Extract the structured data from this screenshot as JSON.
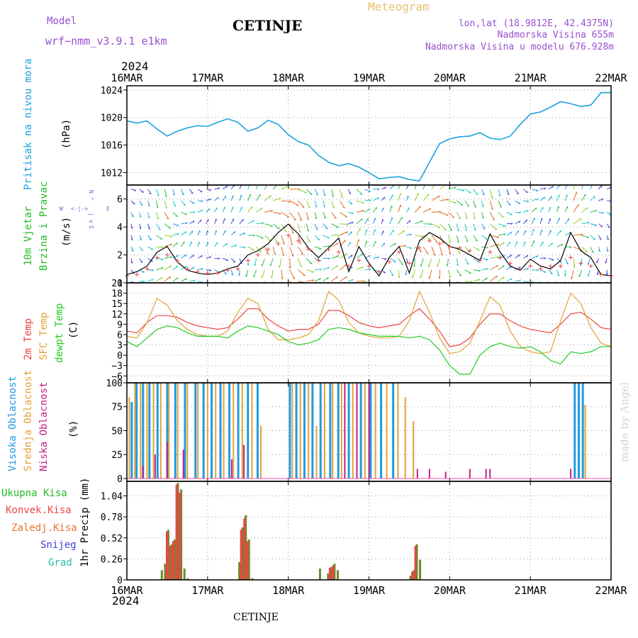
{
  "header": {
    "model_label": "Model",
    "model_name": "wrf−nmm_v3.9.1  e1km",
    "station": "CETINJE",
    "meteogram_label": "Meteogram",
    "lonlat": "lon,lat (18.9812E, 42.4375N)",
    "elevation": "Nadmorska Visina 655m",
    "model_elevation": "Nadmorska Visina u modelu 676.928m",
    "watermark": "made by Angel",
    "footer_station": "CETINJE",
    "year": "2024"
  },
  "colors": {
    "pressure": "#1da1e0",
    "wind": "#22bb22",
    "temp2m": "#ee4444",
    "sfc": "#e2a238",
    "dewpt": "#22cc22",
    "high_cloud": "#1e9be0",
    "mid_cloud": "#e2a238",
    "low_cloud": "#c0208a",
    "model": "#9a4fd0",
    "meteogram": "#e8c070",
    "snow": "#4040dd",
    "grad": "#22bbaa"
  },
  "chart_data": [
    {
      "type": "line",
      "id": "pressure",
      "ylabel": "Pritisak na nivou mora",
      "unit": "(hPa)",
      "x_ticks": [
        "16MAR",
        "17MAR",
        "18MAR",
        "19MAR",
        "20MAR",
        "21MAR",
        "22MAR"
      ],
      "yticks": [
        1012,
        1016,
        1020,
        1024
      ],
      "ylim": [
        1010.2,
        1024.6
      ],
      "x_days": [
        0,
        0.125,
        0.25,
        0.375,
        0.5,
        0.625,
        0.75,
        0.875,
        1.0,
        1.125,
        1.25,
        1.375,
        1.5,
        1.625,
        1.75,
        1.875,
        2.0,
        2.125,
        2.25,
        2.375,
        2.5,
        2.625,
        2.75,
        2.875,
        3.0,
        3.125,
        3.25,
        3.375,
        3.5,
        3.625,
        3.75,
        3.875,
        4.0,
        4.125,
        4.25,
        4.375,
        4.5,
        4.625,
        4.75,
        4.875,
        5.0,
        5.125,
        5.25,
        5.375,
        5.5,
        5.625,
        5.75,
        5.875,
        6.0
      ],
      "series": [
        {
          "values": [
            1019.5,
            1019.2,
            1019.5,
            1018.3,
            1017.3,
            1018.0,
            1018.5,
            1018.8,
            1018.7,
            1019.3,
            1019.8,
            1019.3,
            1018.0,
            1018.5,
            1019.6,
            1019.0,
            1017.5,
            1016.5,
            1016.0,
            1014.5,
            1013.5,
            1013.0,
            1013.3,
            1012.8,
            1012.0,
            1011.1,
            1011.3,
            1011.4,
            1011.0,
            1010.8,
            1013.5,
            1016.2,
            1016.9,
            1017.2,
            1017.3,
            1017.8,
            1017.0,
            1016.8,
            1017.3,
            1019.0,
            1020.5,
            1020.8,
            1021.5,
            1022.3,
            1022.0,
            1021.6,
            1021.8,
            1023.6,
            1023.6
          ]
        }
      ]
    },
    {
      "type": "line",
      "id": "wind",
      "ylabel": [
        "10m Vjetar",
        "Brzina i Pravac"
      ],
      "unit": "(m/s)",
      "compass": [
        "W",
        "<-|->",
        "E",
        "N",
        "^",
        "|",
        "v",
        "S"
      ],
      "yticks": [
        0,
        2,
        4,
        6
      ],
      "ylim": [
        0,
        7.0
      ],
      "x_days": [
        0,
        0.125,
        0.25,
        0.375,
        0.5,
        0.625,
        0.75,
        0.875,
        1.0,
        1.125,
        1.25,
        1.375,
        1.5,
        1.625,
        1.75,
        1.875,
        2.0,
        2.125,
        2.25,
        2.375,
        2.5,
        2.625,
        2.75,
        2.875,
        3.0,
        3.125,
        3.25,
        3.375,
        3.5,
        3.625,
        3.75,
        3.875,
        4.0,
        4.125,
        4.25,
        4.375,
        4.5,
        4.625,
        4.75,
        4.875,
        5.0,
        5.125,
        5.25,
        5.375,
        5.5,
        5.625,
        5.75,
        5.875,
        6.0
      ],
      "series": [
        {
          "name": "speed",
          "values": [
            0.6,
            0.8,
            1.2,
            2.2,
            2.6,
            1.5,
            0.9,
            0.7,
            0.6,
            0.7,
            1.0,
            1.2,
            2.0,
            2.3,
            2.8,
            3.6,
            4.2,
            3.5,
            2.5,
            1.8,
            2.5,
            3.2,
            0.8,
            2.6,
            1.4,
            0.5,
            1.8,
            2.6,
            0.7,
            3.0,
            3.6,
            3.2,
            2.6,
            2.4,
            2.0,
            1.6,
            3.5,
            2.2,
            1.2,
            0.9,
            1.7,
            1.2,
            1.0,
            1.6,
            3.6,
            2.3,
            1.8,
            0.6,
            0.5
          ]
        },
        {
          "name": "gust",
          "values": [
            0.5,
            0.6,
            1.0,
            1.8,
            2.0,
            1.6,
            1.0,
            0.8,
            0.7,
            0.7,
            0.9,
            1.0,
            1.6,
            2.0,
            2.4,
            2.8,
            3.4,
            3.0,
            2.4,
            1.6,
            2.4,
            2.2,
            1.2,
            1.6,
            1.2,
            0.8,
            1.5,
            2.2,
            1.4,
            2.5,
            3.0,
            2.8,
            2.6,
            2.5,
            2.3,
            1.6,
            2.2,
            1.8,
            1.4,
            1.0,
            1.2,
            1.0,
            1.2,
            1.2,
            1.8,
            1.4,
            1.2,
            0.6,
            0.5
          ]
        }
      ]
    },
    {
      "type": "line",
      "id": "temperature",
      "ylabel": [
        "2m Temp",
        "SFC Temp",
        "dewpt Temp"
      ],
      "unit": "(C)",
      "yticks": [
        -6,
        -3,
        0,
        3,
        6,
        9,
        12,
        15,
        18,
        21
      ],
      "ylim": [
        -8.0,
        21.0
      ],
      "x_days": [
        0,
        0.125,
        0.25,
        0.375,
        0.5,
        0.625,
        0.75,
        0.875,
        1.0,
        1.125,
        1.25,
        1.375,
        1.5,
        1.625,
        1.75,
        1.875,
        2.0,
        2.125,
        2.25,
        2.375,
        2.5,
        2.625,
        2.75,
        2.875,
        3.0,
        3.125,
        3.25,
        3.375,
        3.5,
        3.625,
        3.75,
        3.875,
        4.0,
        4.125,
        4.25,
        4.375,
        4.5,
        4.625,
        4.75,
        4.875,
        5.0,
        5.125,
        5.25,
        5.375,
        5.5,
        5.625,
        5.75,
        5.875,
        6.0
      ],
      "series": [
        {
          "name": "2m Temp",
          "values": [
            7.0,
            6.5,
            9.5,
            11.5,
            11.5,
            11.0,
            9.5,
            8.5,
            8.0,
            7.5,
            8.0,
            10.5,
            13.5,
            13.5,
            10.5,
            8.5,
            7.0,
            7.5,
            7.5,
            9.0,
            13.0,
            13.0,
            11.5,
            9.5,
            8.5,
            8.0,
            8.5,
            9.0,
            11.5,
            13.5,
            10.5,
            7.0,
            2.5,
            3.0,
            5.0,
            9.0,
            12.0,
            12.0,
            10.0,
            8.5,
            7.5,
            7.0,
            6.5,
            9.0,
            12.0,
            12.5,
            10.5,
            8.0,
            7.5
          ]
        },
        {
          "name": "SFC Temp",
          "values": [
            5.5,
            5.0,
            9.5,
            16.5,
            14.5,
            10.0,
            7.5,
            6.0,
            5.5,
            5.5,
            7.0,
            12.5,
            16.5,
            15.0,
            7.5,
            4.5,
            4.5,
            5.0,
            6.0,
            10.0,
            18.5,
            16.0,
            9.5,
            6.5,
            5.5,
            5.0,
            5.0,
            5.5,
            10.0,
            18.5,
            12.5,
            5.0,
            0.5,
            1.0,
            3.5,
            10.0,
            17.0,
            14.5,
            7.0,
            2.5,
            1.0,
            0.5,
            1.0,
            10.0,
            18.0,
            15.0,
            8.0,
            3.5,
            2.5
          ]
        },
        {
          "name": "dewpt Temp",
          "values": [
            4.0,
            2.5,
            5.0,
            7.5,
            8.5,
            8.0,
            6.5,
            5.5,
            5.5,
            5.5,
            5.0,
            7.0,
            8.5,
            8.0,
            7.0,
            6.0,
            4.0,
            3.0,
            3.5,
            4.5,
            7.5,
            8.0,
            7.5,
            6.5,
            6.0,
            5.5,
            5.5,
            5.5,
            5.0,
            5.5,
            4.5,
            1.5,
            -3.0,
            -5.5,
            -5.5,
            0.0,
            2.5,
            3.5,
            2.5,
            2.0,
            2.5,
            1.0,
            -1.5,
            -2.5,
            1.0,
            0.5,
            1.0,
            2.5,
            2.5
          ]
        }
      ]
    },
    {
      "type": "bar",
      "id": "clouds",
      "ylabel": [
        "Visoka Oblacnost",
        "Srednja Oblacnost",
        "Niska Oblacnost"
      ],
      "unit": "(%)",
      "yticks": [
        0,
        25,
        50,
        75,
        100
      ],
      "ylim": [
        -3,
        100
      ],
      "series": [
        {
          "name": "Visoka Oblacnost",
          "x_days": [
            0.06,
            0.12,
            0.2,
            0.28,
            0.38,
            0.5,
            0.6,
            0.72,
            0.85,
            0.95,
            1.05,
            1.16,
            1.27,
            1.38,
            1.5,
            1.62,
            2.02,
            2.1,
            2.2,
            2.3,
            2.4,
            2.52,
            2.62,
            2.75,
            2.9,
            3.02,
            3.15,
            3.3,
            5.55,
            5.6,
            5.65
          ],
          "values": [
            80,
            100,
            100,
            100,
            100,
            100,
            100,
            100,
            100,
            100,
            100,
            100,
            100,
            100,
            100,
            100,
            100,
            100,
            100,
            100,
            100,
            100,
            100,
            100,
            100,
            100,
            100,
            100,
            100,
            100,
            100
          ]
        },
        {
          "name": "Srednja Oblacnost",
          "x_days": [
            0.03,
            0.1,
            0.17,
            0.25,
            0.33,
            0.42,
            0.52,
            0.63,
            0.75,
            0.88,
            1.0,
            1.1,
            1.2,
            1.32,
            1.43,
            1.55,
            1.66,
            2.05,
            2.15,
            2.25,
            2.35,
            2.45,
            2.55,
            2.66,
            2.8,
            2.95,
            3.08,
            3.22,
            3.36,
            3.45,
            3.55,
            5.68
          ],
          "values": [
            85,
            100,
            100,
            100,
            100,
            100,
            100,
            100,
            100,
            100,
            100,
            100,
            100,
            100,
            100,
            100,
            55,
            100,
            100,
            100,
            55,
            100,
            100,
            100,
            100,
            100,
            100,
            100,
            100,
            85,
            60,
            77
          ]
        },
        {
          "name": "Niska Oblacnost",
          "x_days": [
            0.2,
            0.35,
            0.5,
            0.7,
            1.3,
            1.45,
            2.7,
            2.85,
            3.0,
            3.6,
            3.75,
            3.95,
            4.25,
            4.45,
            4.5,
            5.5
          ],
          "values": [
            13,
            25,
            38,
            30,
            20,
            35,
            100,
            100,
            100,
            10,
            10,
            7,
            10,
            10,
            10,
            10
          ]
        }
      ]
    },
    {
      "type": "bar",
      "id": "precip",
      "ylabel": "1hr Precip (mm)",
      "legend": [
        "Ukupna Kisa",
        "Konvek.Kisa",
        "Zaledj.Kisa",
        "Snijeg",
        "Grad"
      ],
      "yticks": [
        0,
        0.26,
        0.52,
        0.78,
        1.04
      ],
      "ylim": [
        0,
        1.22
      ],
      "x_ticks": [
        "16MAR",
        "17MAR",
        "18MAR",
        "19MAR",
        "20MAR",
        "21MAR",
        "22MAR"
      ],
      "series": [
        {
          "name": "Ukupna Kisa",
          "x_days": [
            0.42,
            0.46,
            0.5,
            0.54,
            0.58,
            0.62,
            0.66,
            0.7,
            0.74,
            1.38,
            1.42,
            1.46,
            1.5,
            1.54,
            2.38,
            2.48,
            2.52,
            2.56,
            2.6,
            3.5,
            3.54,
            3.58,
            3.62
          ],
          "values": [
            0.12,
            0.2,
            0.62,
            0.44,
            0.5,
            1.2,
            1.12,
            0.14,
            0.02,
            0.22,
            0.65,
            0.8,
            0.5,
            0.02,
            0.14,
            0.08,
            0.16,
            0.2,
            0.12,
            0.05,
            0.12,
            0.44,
            0.25
          ]
        },
        {
          "name": "Konvek.Kisa",
          "x_days": [
            0.5,
            0.54,
            0.58,
            0.62,
            0.66,
            1.42,
            1.46,
            1.5,
            2.52,
            2.56,
            3.54,
            3.58
          ],
          "values": [
            0.6,
            0.42,
            0.48,
            1.18,
            1.08,
            0.62,
            0.76,
            0.48,
            0.15,
            0.18,
            0.1,
            0.42
          ]
        }
      ]
    }
  ]
}
